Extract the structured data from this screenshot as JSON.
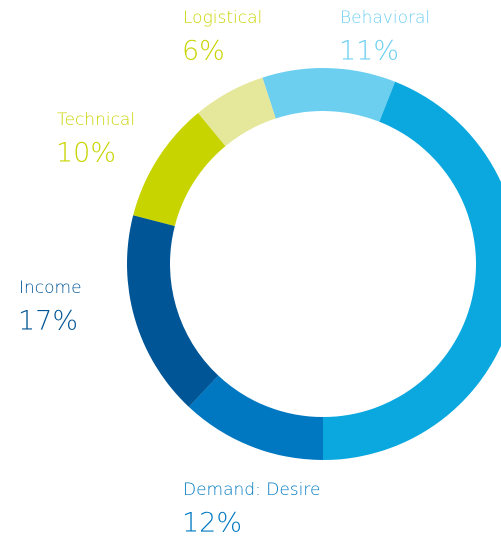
{
  "chart_data": {
    "type": "donut",
    "categories": [
      "Behavioral",
      null,
      "Demand: Desire",
      "Income",
      "Technical",
      "Logistical"
    ],
    "values": [
      11,
      44,
      12,
      17,
      10,
      6
    ],
    "value_labels": [
      "11%",
      null,
      "12%",
      "17%",
      "10%",
      "6%"
    ],
    "colors": [
      "#6dcff0",
      "#0aa8de",
      "#0078c1",
      "#005596",
      "#c8d400",
      "#e5e89a"
    ],
    "label_colors": [
      "#6dcff0",
      null,
      "#0078c1",
      "#005596",
      "#c8d400",
      "#c8d400"
    ]
  }
}
